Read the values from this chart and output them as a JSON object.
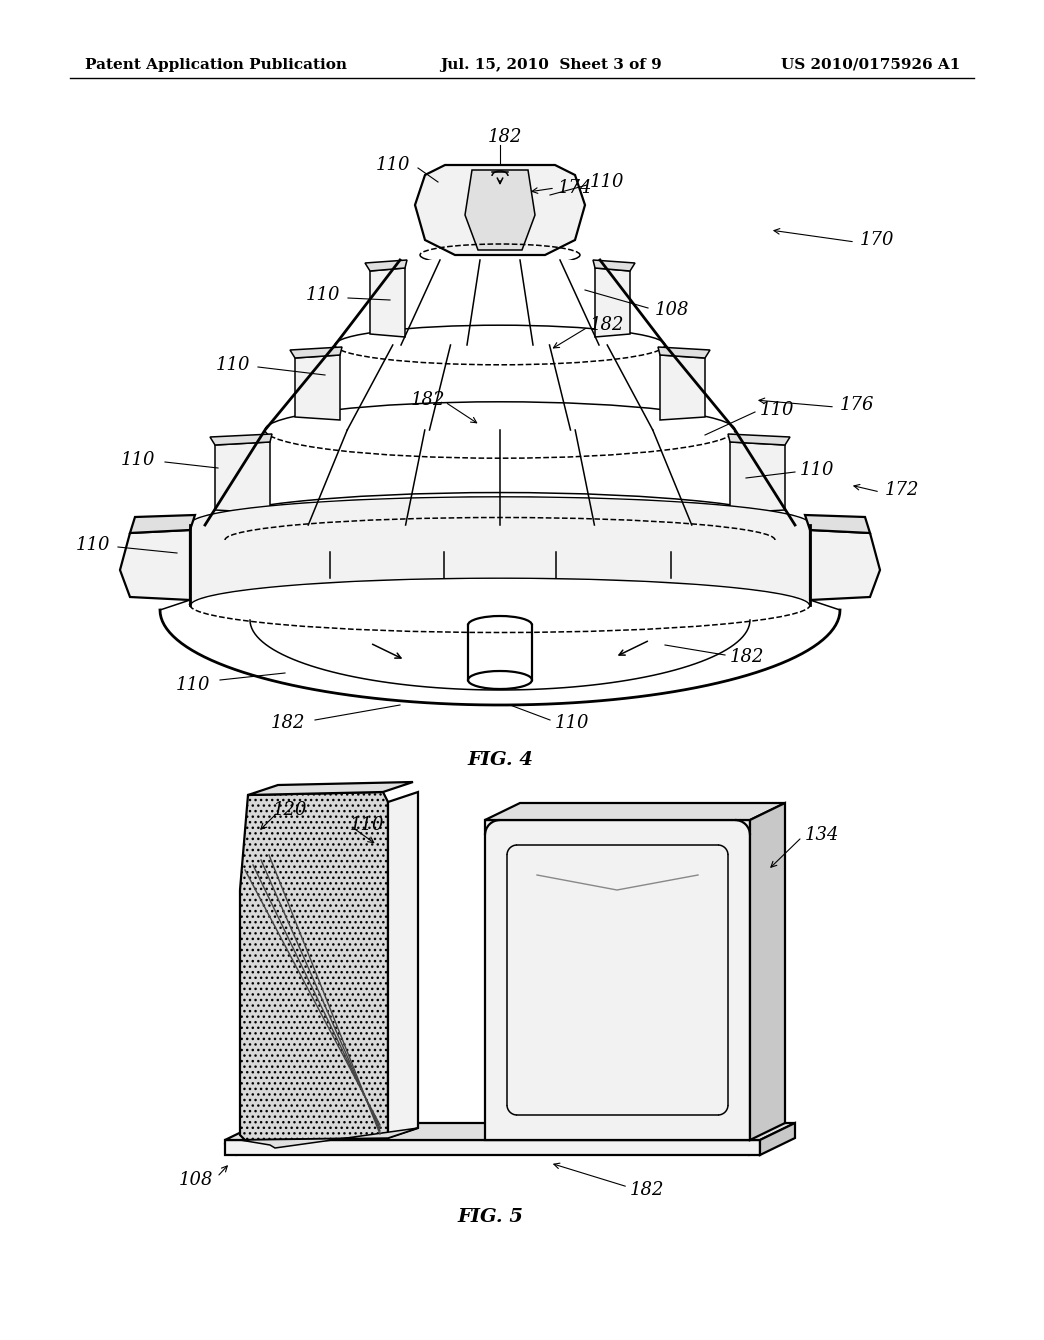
{
  "background_color": "#ffffff",
  "header_left": "Patent Application Publication",
  "header_center": "Jul. 15, 2010  Sheet 3 of 9",
  "header_right": "US 2010/0175926 A1",
  "fig4_label": "FIG. 4",
  "fig5_label": "FIG. 5",
  "header_fontsize": 11,
  "fig_label_fontsize": 14,
  "ref_fontsize": 13
}
